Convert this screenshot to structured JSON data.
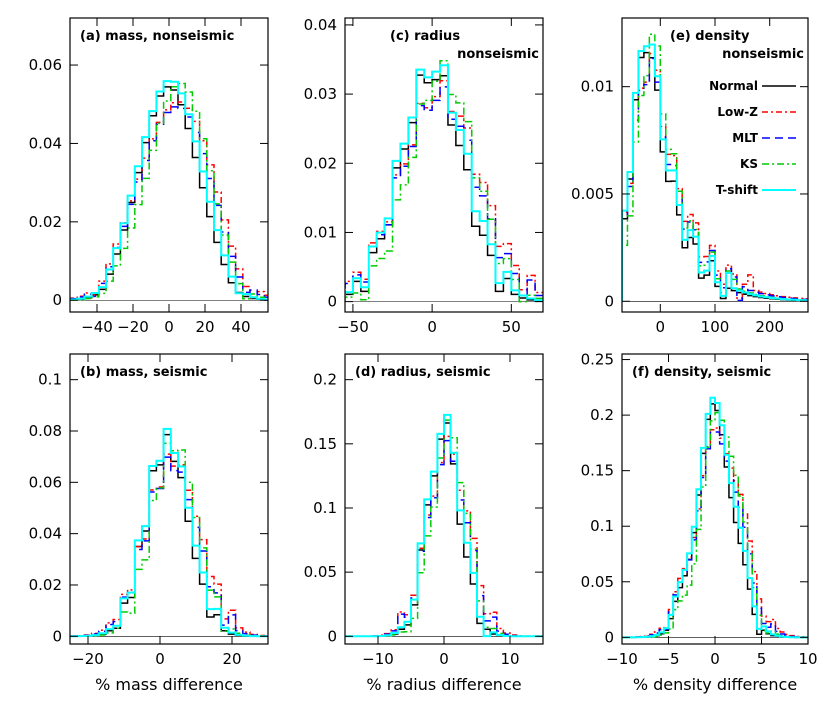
{
  "series_styles": [
    {
      "name": "Normal",
      "color": "#000000",
      "dash": ""
    },
    {
      "name": "Low-Z",
      "color": "#ff0000",
      "dash": "6,3,2,3"
    },
    {
      "name": "MLT",
      "color": "#0000ff",
      "dash": "8,5"
    },
    {
      "name": "KS",
      "color": "#00cc00",
      "dash": "7,3,2,3"
    },
    {
      "name": "T-shift",
      "color": "#00ffff",
      "dash": ""
    }
  ],
  "chart_data": [
    {
      "type": "histogram",
      "title": [
        "(a) mass, nonseismic"
      ],
      "xlabel": "",
      "xlim": [
        -55,
        55
      ],
      "ylim": [
        -0.003,
        0.072
      ],
      "xticks": [
        -40,
        -20,
        0,
        20,
        40
      ],
      "xtick_labels": [
        "−40",
        "−20",
        "0",
        "20",
        "40"
      ],
      "yticks": [
        0,
        0.02,
        0.04,
        0.06
      ],
      "ytick_labels": [
        "0",
        "0.02",
        "0.04",
        "0.06"
      ],
      "center": 0,
      "width": 15,
      "bin": 4,
      "peak": 0.058,
      "legend": false
    },
    {
      "type": "histogram",
      "title": [
        "(c) radius",
        "nonseismic"
      ],
      "xlabel": "",
      "xlim": [
        -55,
        70
      ],
      "ylim": [
        -0.0015,
        0.041
      ],
      "xticks": [
        -50,
        0,
        50
      ],
      "xtick_labels": [
        "−50",
        "0",
        "50"
      ],
      "yticks": [
        0,
        0.01,
        0.02,
        0.03,
        0.04
      ],
      "ytick_labels": [
        "0",
        "0.01",
        "0.02",
        "0.03",
        "0.04"
      ],
      "center": 0,
      "width": 20,
      "bin": 5,
      "peak": 0.033,
      "legend": false
    },
    {
      "type": "histogram",
      "title": [
        "(e) density",
        "nonseismic"
      ],
      "xlabel": "",
      "xlim": [
        -70,
        270
      ],
      "ylim": [
        -0.0005,
        0.0132
      ],
      "xticks": [
        0,
        100,
        200
      ],
      "xtick_labels": [
        "0",
        "100",
        "200"
      ],
      "yticks": [
        0,
        0.005,
        0.01
      ],
      "ytick_labels": [
        "0",
        "0.005",
        "0.01"
      ],
      "center": -20,
      "width": 30,
      "bin": 10,
      "peak": 0.0125,
      "legend": true
    },
    {
      "type": "histogram",
      "title": [
        "(b) mass, seismic"
      ],
      "xlabel": "% mass difference",
      "xlim": [
        -25,
        30
      ],
      "ylim": [
        -0.003,
        0.11
      ],
      "xticks": [
        -20,
        0,
        20
      ],
      "xtick_labels": [
        "−20",
        "0",
        "20"
      ],
      "yticks": [
        0,
        0.02,
        0.04,
        0.06,
        0.08,
        0.1
      ],
      "ytick_labels": [
        "0",
        "0.02",
        "0.04",
        "0.06",
        "0.08",
        "0.1"
      ],
      "center": 2,
      "width": 6,
      "bin": 2,
      "peak": 0.075,
      "legend": false
    },
    {
      "type": "histogram",
      "title": [
        "(d) radius, seismic"
      ],
      "xlabel": "% radius difference",
      "xlim": [
        -15,
        15
      ],
      "ylim": [
        -0.006,
        0.22
      ],
      "xticks": [
        -10,
        0,
        10
      ],
      "xtick_labels": [
        "−10",
        "0",
        "10"
      ],
      "yticks": [
        0,
        0.05,
        0.1,
        0.15,
        0.2
      ],
      "ytick_labels": [
        "0",
        "0.05",
        "0.1",
        "0.15",
        "0.2"
      ],
      "center": 0,
      "width": 2.5,
      "bin": 1,
      "peak": 0.16,
      "legend": false
    },
    {
      "type": "histogram",
      "title": [
        "(f) density, seismic"
      ],
      "xlabel": "% density difference",
      "xlim": [
        -10,
        10
      ],
      "ylim": [
        -0.006,
        0.255
      ],
      "xticks": [
        -10,
        -5,
        0,
        5,
        10
      ],
      "xtick_labels": [
        "−10",
        "−5",
        "0",
        "5",
        "10"
      ],
      "yticks": [
        0,
        0.05,
        0.1,
        0.15,
        0.2,
        0.25
      ],
      "ytick_labels": [
        "0",
        "0.05",
        "0.1",
        "0.15",
        "0.2",
        "0.25"
      ],
      "center": 0,
      "width": 2,
      "bin": 0.5,
      "peak": 0.2,
      "legend": false
    }
  ]
}
